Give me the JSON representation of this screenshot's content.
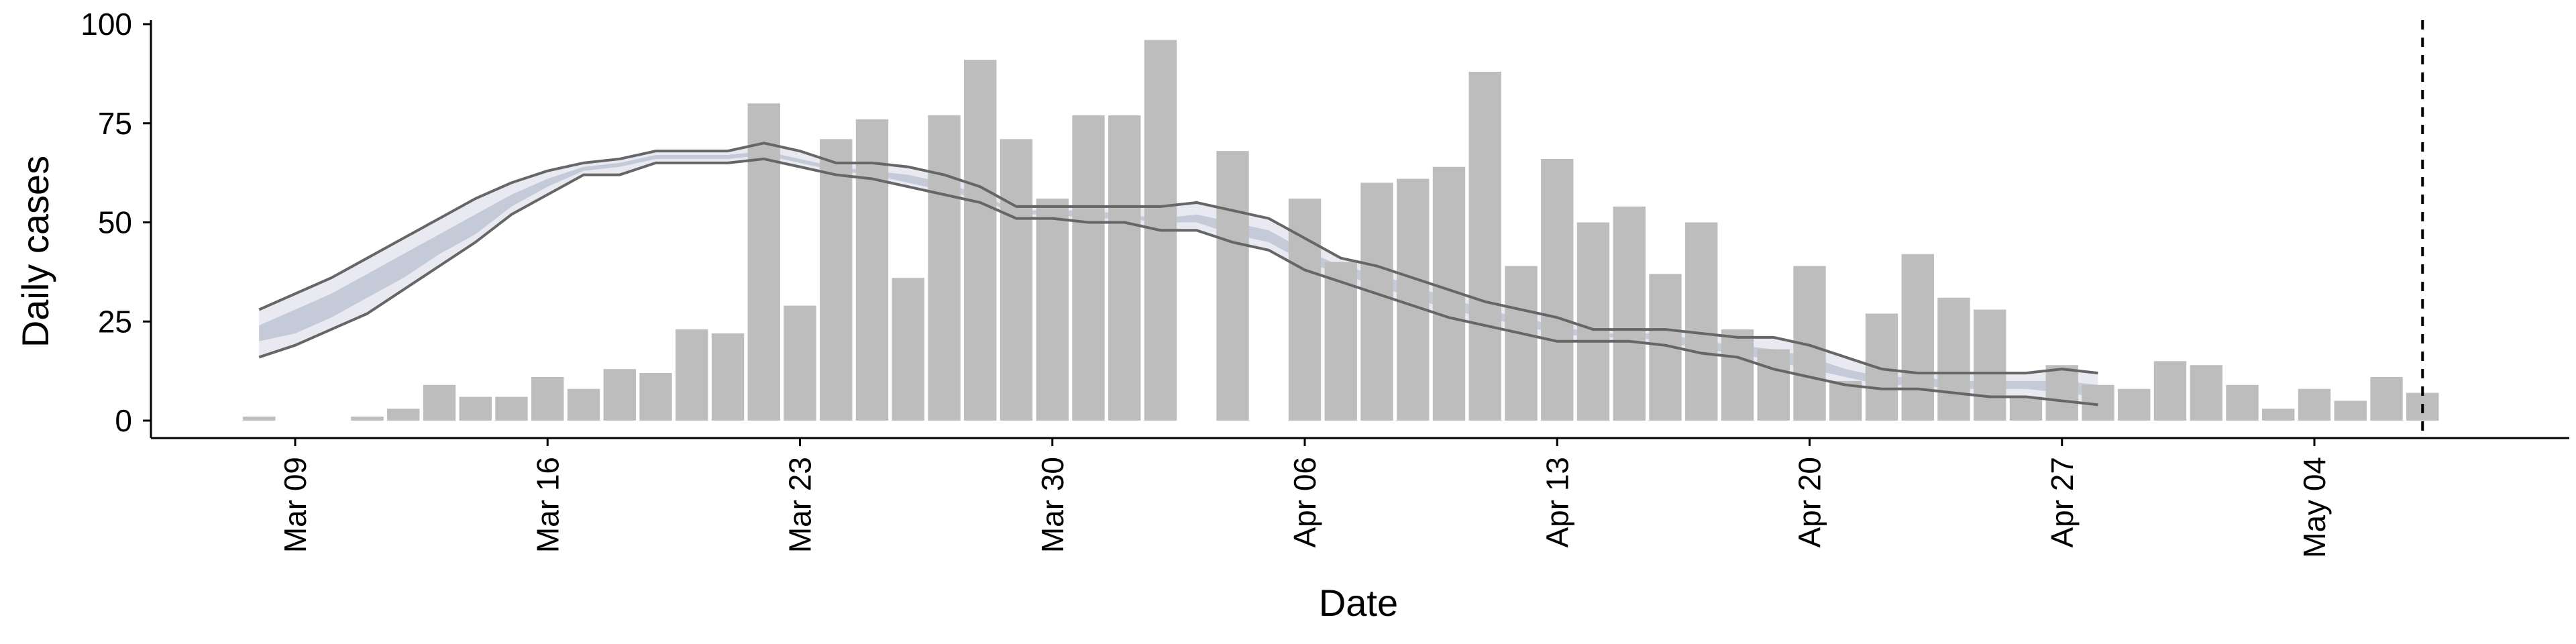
{
  "chart_data": {
    "type": "bar",
    "xlabel": "Date",
    "ylabel": "Daily cases",
    "ylim": [
      0,
      100
    ],
    "y_ticks": [
      0,
      25,
      50,
      75,
      100
    ],
    "x_range": [
      "2020-03-05",
      "2020-05-11"
    ],
    "x_ticks": [
      {
        "date": "2020-03-09",
        "label": "Mar 09"
      },
      {
        "date": "2020-03-16",
        "label": "Mar 16"
      },
      {
        "date": "2020-03-23",
        "label": "Mar 23"
      },
      {
        "date": "2020-03-30",
        "label": "Mar 30"
      },
      {
        "date": "2020-04-06",
        "label": "Apr 06"
      },
      {
        "date": "2020-04-13",
        "label": "Apr 13"
      },
      {
        "date": "2020-04-20",
        "label": "Apr 20"
      },
      {
        "date": "2020-04-27",
        "label": "Apr 27"
      },
      {
        "date": "2020-05-04",
        "label": "May 04"
      }
    ],
    "grid": false,
    "legend": "none",
    "bars": {
      "dates": [
        "2020-03-08",
        "2020-03-09",
        "2020-03-10",
        "2020-03-11",
        "2020-03-12",
        "2020-03-13",
        "2020-03-14",
        "2020-03-15",
        "2020-03-16",
        "2020-03-17",
        "2020-03-18",
        "2020-03-19",
        "2020-03-20",
        "2020-03-21",
        "2020-03-22",
        "2020-03-23",
        "2020-03-24",
        "2020-03-25",
        "2020-03-26",
        "2020-03-27",
        "2020-03-28",
        "2020-03-29",
        "2020-03-30",
        "2020-03-31",
        "2020-04-01",
        "2020-04-02",
        "2020-04-03",
        "2020-04-04",
        "2020-04-05",
        "2020-04-06",
        "2020-04-07",
        "2020-04-08",
        "2020-04-09",
        "2020-04-10",
        "2020-04-11",
        "2020-04-12",
        "2020-04-13",
        "2020-04-14",
        "2020-04-15",
        "2020-04-16",
        "2020-04-17",
        "2020-04-18",
        "2020-04-19",
        "2020-04-20",
        "2020-04-21",
        "2020-04-22",
        "2020-04-23",
        "2020-04-24",
        "2020-04-25",
        "2020-04-26",
        "2020-04-27",
        "2020-04-28",
        "2020-04-29",
        "2020-04-30",
        "2020-05-01",
        "2020-05-02",
        "2020-05-03",
        "2020-05-04",
        "2020-05-05",
        "2020-05-06",
        "2020-05-07",
        "2020-05-08"
      ],
      "values": [
        1,
        0,
        0,
        1,
        3,
        9,
        6,
        6,
        11,
        8,
        13,
        12,
        23,
        22,
        80,
        29,
        71,
        76,
        36,
        77,
        91,
        71,
        56,
        77,
        77,
        96,
        0,
        68,
        0,
        56,
        40,
        60,
        61,
        64,
        88,
        39,
        66,
        50,
        54,
        37,
        50,
        23,
        18,
        39,
        10,
        27,
        42,
        31,
        28,
        6,
        14,
        9,
        8,
        15,
        14,
        9,
        3,
        8,
        5,
        11,
        7,
        0
      ],
      "color": "#bdbdbd"
    },
    "band": {
      "dates": [
        "2020-03-08",
        "2020-03-09",
        "2020-03-10",
        "2020-03-11",
        "2020-03-12",
        "2020-03-13",
        "2020-03-14",
        "2020-03-15",
        "2020-03-16",
        "2020-03-17",
        "2020-03-18",
        "2020-03-19",
        "2020-03-20",
        "2020-03-21",
        "2020-03-22",
        "2020-03-23",
        "2020-03-24",
        "2020-03-25",
        "2020-03-26",
        "2020-03-27",
        "2020-03-28",
        "2020-03-29",
        "2020-03-30",
        "2020-03-31",
        "2020-04-01",
        "2020-04-02",
        "2020-04-03",
        "2020-04-04",
        "2020-04-05",
        "2020-04-06",
        "2020-04-07",
        "2020-04-08",
        "2020-04-09",
        "2020-04-10",
        "2020-04-11",
        "2020-04-12",
        "2020-04-13",
        "2020-04-14",
        "2020-04-15",
        "2020-04-16",
        "2020-04-17",
        "2020-04-18",
        "2020-04-19",
        "2020-04-20",
        "2020-04-21",
        "2020-04-22",
        "2020-04-23",
        "2020-04-24",
        "2020-04-25",
        "2020-04-26",
        "2020-04-27",
        "2020-04-28"
      ],
      "outer_upper": [
        28,
        32,
        36,
        41,
        46,
        51,
        56,
        60,
        63,
        65,
        66,
        68,
        68,
        68,
        70,
        68,
        65,
        65,
        64,
        62,
        59,
        54,
        54,
        54,
        54,
        54,
        55,
        53,
        51,
        46,
        41,
        39,
        36,
        33,
        30,
        28,
        26,
        23,
        23,
        23,
        22,
        21,
        21,
        19,
        16,
        13,
        12,
        12,
        12,
        12,
        13,
        12
      ],
      "outer_lower": [
        16,
        19,
        23,
        27,
        33,
        39,
        45,
        52,
        57,
        62,
        62,
        65,
        65,
        65,
        66,
        64,
        62,
        61,
        59,
        57,
        55,
        51,
        51,
        50,
        50,
        48,
        48,
        45,
        43,
        38,
        35,
        32,
        29,
        26,
        24,
        22,
        20,
        20,
        20,
        19,
        17,
        16,
        13,
        11,
        9,
        8,
        8,
        7,
        6,
        6,
        5,
        4
      ],
      "inner_upper": [
        24,
        28,
        32,
        37,
        42,
        47,
        52,
        57,
        61,
        64,
        65,
        67,
        67,
        67,
        68,
        66,
        64,
        63,
        62,
        60,
        57,
        53,
        53,
        53,
        52,
        51,
        52,
        50,
        48,
        43,
        39,
        37,
        34,
        31,
        28,
        26,
        24,
        22,
        22,
        22,
        20,
        19,
        18,
        16,
        13,
        11,
        11,
        10,
        10,
        10,
        10,
        9
      ],
      "inner_lower": [
        20,
        22,
        26,
        31,
        36,
        42,
        47,
        54,
        59,
        63,
        64,
        66,
        66,
        66,
        67,
        65,
        63,
        62,
        60,
        58,
        56,
        52,
        52,
        51,
        51,
        50,
        50,
        47,
        45,
        40,
        37,
        34,
        31,
        28,
        26,
        24,
        22,
        21,
        21,
        20,
        18,
        17,
        15,
        13,
        11,
        9,
        9,
        8,
        8,
        8,
        7,
        6
      ],
      "inner_color": "#c5cad9",
      "outer_color": "#e8e9f1",
      "line_color": "#666666"
    },
    "vline": {
      "date": "2020-05-07",
      "style": "dashed",
      "color": "#000000"
    }
  }
}
